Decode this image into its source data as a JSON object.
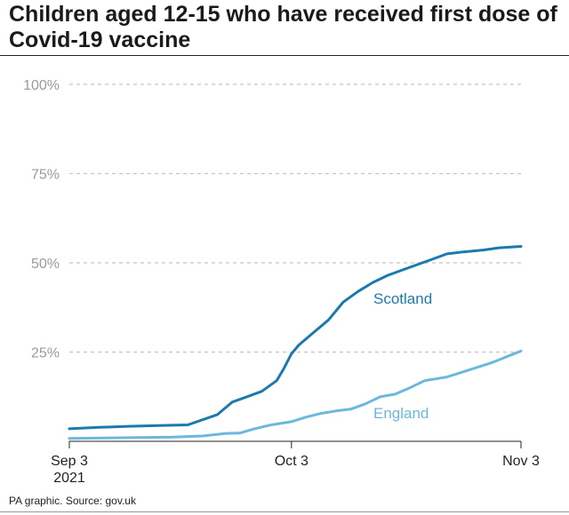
{
  "title": "Children aged 12-15 who have received first dose of Covid-19 vaccine",
  "source": "PA graphic. Source: gov.uk",
  "colors": {
    "scotland": "#1a7aad",
    "england": "#6bb8de",
    "grid": "#c4c4c4",
    "tick": "#9a9a9a"
  },
  "chart_data": {
    "type": "line",
    "title": "Children aged 12-15 who have received first dose of Covid-19 vaccine",
    "xlabel": "",
    "ylabel": "",
    "ylim": [
      0,
      100
    ],
    "yticks": [
      {
        "value": 25,
        "label": "25%"
      },
      {
        "value": 50,
        "label": "50%"
      },
      {
        "value": 75,
        "label": "75%"
      },
      {
        "value": 100,
        "label": "100%"
      }
    ],
    "xticks": [
      {
        "date": "2021-09-03",
        "label": "Sep 3",
        "sublabel": "2021"
      },
      {
        "date": "2021-10-03",
        "label": "Oct 3",
        "sublabel": ""
      },
      {
        "date": "2021-11-03",
        "label": "Nov 3",
        "sublabel": ""
      }
    ],
    "xlim": [
      "2021-09-03",
      "2021-11-03"
    ],
    "grid": true,
    "series": [
      {
        "name": "Scotland",
        "color_key": "scotland",
        "x": [
          "2021-09-03",
          "2021-09-07",
          "2021-09-11",
          "2021-09-15",
          "2021-09-19",
          "2021-09-23",
          "2021-09-25",
          "2021-09-27",
          "2021-09-29",
          "2021-10-01",
          "2021-10-02",
          "2021-10-03",
          "2021-10-04",
          "2021-10-06",
          "2021-10-08",
          "2021-10-10",
          "2021-10-12",
          "2021-10-14",
          "2021-10-16",
          "2021-10-18",
          "2021-10-20",
          "2021-10-22",
          "2021-10-24",
          "2021-10-26",
          "2021-10-27",
          "2021-10-29",
          "2021-10-31",
          "2021-11-03"
        ],
        "values": [
          3.5,
          3.9,
          4.2,
          4.4,
          4.6,
          7.5,
          11,
          12.5,
          14,
          17,
          20.5,
          24.5,
          27,
          30.5,
          34,
          39,
          42,
          44.5,
          46.5,
          48,
          49.5,
          51,
          52.5,
          53,
          53.2,
          53.6,
          54.2,
          54.6
        ]
      },
      {
        "name": "England",
        "color_key": "england",
        "x": [
          "2021-09-03",
          "2021-09-10",
          "2021-09-17",
          "2021-09-21",
          "2021-09-24",
          "2021-09-26",
          "2021-09-28",
          "2021-09-30",
          "2021-10-03",
          "2021-10-05",
          "2021-10-07",
          "2021-10-09",
          "2021-10-11",
          "2021-10-13",
          "2021-10-15",
          "2021-10-17",
          "2021-10-19",
          "2021-10-21",
          "2021-10-24",
          "2021-10-27",
          "2021-10-30",
          "2021-11-03"
        ],
        "values": [
          0.8,
          1.0,
          1.2,
          1.5,
          2.2,
          2.3,
          3.5,
          4.5,
          5.5,
          6.8,
          7.8,
          8.5,
          9.0,
          10.5,
          12.5,
          13.2,
          15.0,
          17.0,
          18.0,
          20.0,
          22.0,
          25.3
        ]
      }
    ]
  }
}
